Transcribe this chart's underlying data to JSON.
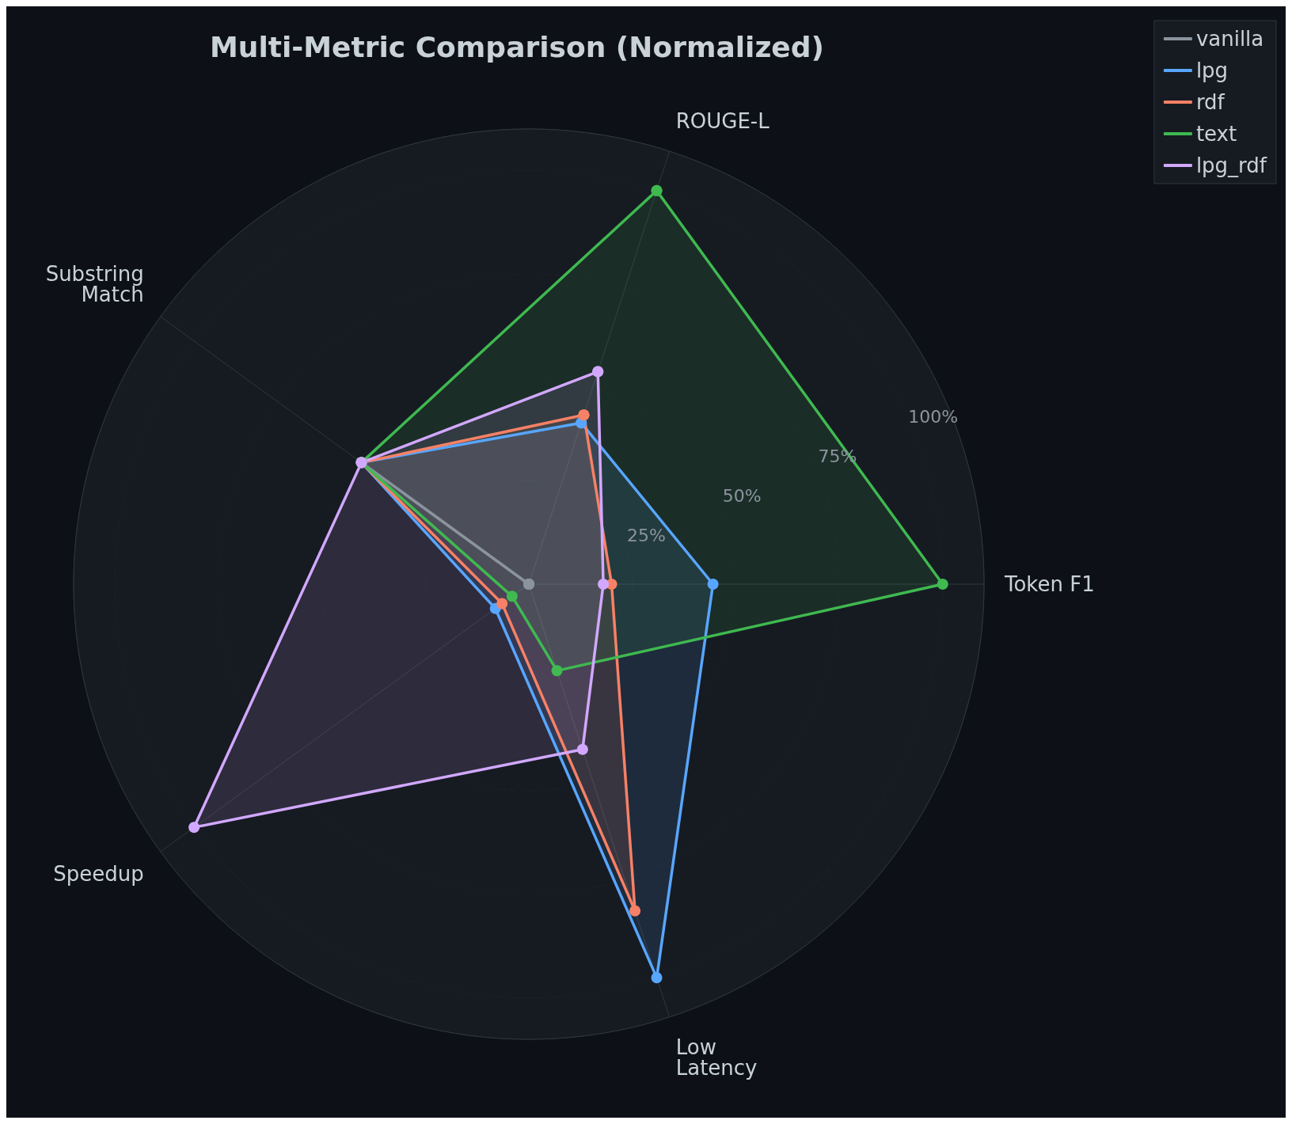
{
  "chart_data": {
    "type": "radar",
    "title": "Multi-Metric Comparison (Normalized)",
    "categories": [
      "ROUGE-L",
      "Token F1",
      "Low\nLatency",
      "Speedup",
      "Substring\nMatch"
    ],
    "ylim": [
      0,
      110
    ],
    "yticks": [
      {
        "value": 25,
        "label": "25%"
      },
      {
        "value": 50,
        "label": "50%"
      },
      {
        "value": 75,
        "label": "75%"
      },
      {
        "value": 100,
        "label": "100%"
      }
    ],
    "grid": true,
    "legend": "top right",
    "marker": "circle",
    "line_style": "solid",
    "series": [
      {
        "name": "vanilla",
        "color": "#8b949e",
        "values": [
          0,
          0,
          0,
          0,
          50
        ]
      },
      {
        "name": "lpg",
        "color": "#58a6ff",
        "values": [
          41,
          44.5,
          100,
          10,
          50
        ]
      },
      {
        "name": "rdf",
        "color": "#f78166",
        "values": [
          43,
          20,
          83,
          8,
          50
        ]
      },
      {
        "name": "text",
        "color": "#3fb950",
        "values": [
          100,
          100,
          22,
          5,
          50
        ]
      },
      {
        "name": "lpg_rdf",
        "color": "#d2a8ff",
        "values": [
          54,
          18,
          42,
          100,
          50
        ]
      }
    ]
  }
}
